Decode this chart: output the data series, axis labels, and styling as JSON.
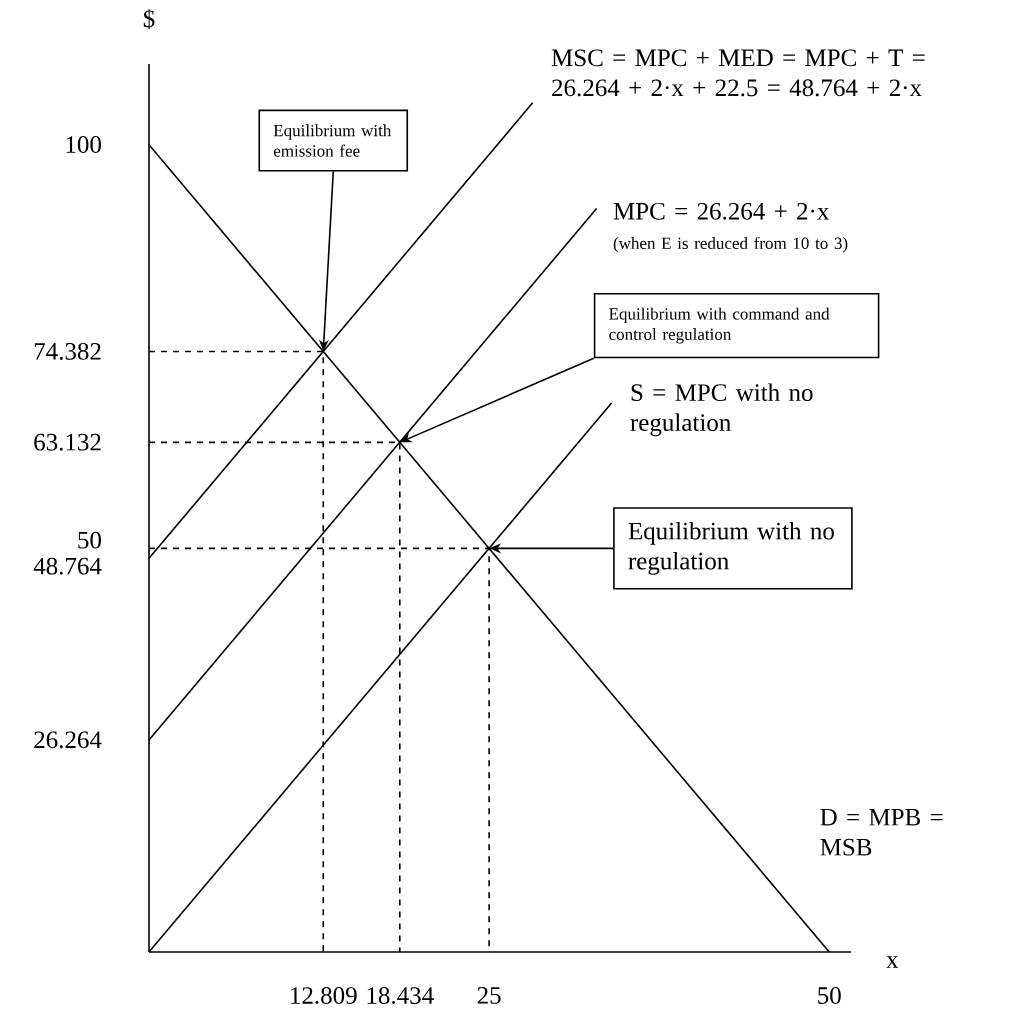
{
  "chart_data": {
    "type": "line",
    "xlabel": "x",
    "ylabel": "$",
    "xlim": [
      0,
      51.6
    ],
    "ylim": [
      0,
      110
    ],
    "xticks": [
      12.809,
      18.434,
      25,
      50
    ],
    "yticks": [
      26.264,
      48.764,
      50,
      63.132,
      74.382,
      100
    ],
    "series": [
      {
        "name": "MSC = MPC + MED = MPC + T = 26.264 + 2·x + 22.5 = 48.764 + 2·x",
        "color": "#000000",
        "line_style": "solid",
        "x": [
          0,
          28.2
        ],
        "values": [
          48.764,
          105.2
        ]
      },
      {
        "name": "MPC = 26.264 + 2·x",
        "color": "#000000",
        "line_style": "solid",
        "x": [
          0,
          32.9
        ],
        "values": [
          26.264,
          92.1
        ]
      },
      {
        "name": "S = MPC with no regulation",
        "color": "#000000",
        "line_style": "solid",
        "x": [
          0,
          34
        ],
        "values": [
          0,
          68
        ]
      },
      {
        "name": "D = MPB = MSB",
        "color": "#000000",
        "line_style": "solid",
        "x": [
          0,
          50
        ],
        "values": [
          100,
          0
        ]
      },
      {
        "color": "#000000",
        "line_style": "dashed",
        "x": [
          0,
          12.809,
          12.809
        ],
        "values": [
          74.382,
          74.382,
          0
        ]
      },
      {
        "color": "#000000",
        "line_style": "dashed",
        "x": [
          0,
          18.434,
          18.434
        ],
        "values": [
          63.132,
          63.132,
          0
        ]
      },
      {
        "color": "#000000",
        "line_style": "dashed",
        "x": [
          0,
          25,
          25
        ],
        "values": [
          50,
          50,
          0
        ]
      }
    ],
    "annotations": [
      "(when E is reduced from 10 to 3)",
      {
        "text": "Equilibrium with emission fee",
        "x": 12.809,
        "y": 74.382
      },
      {
        "text": "Equilibrium with command and control regulation",
        "x": 18.434,
        "y": 63.132
      },
      "Equilibrium with no regulation"
    ]
  }
}
